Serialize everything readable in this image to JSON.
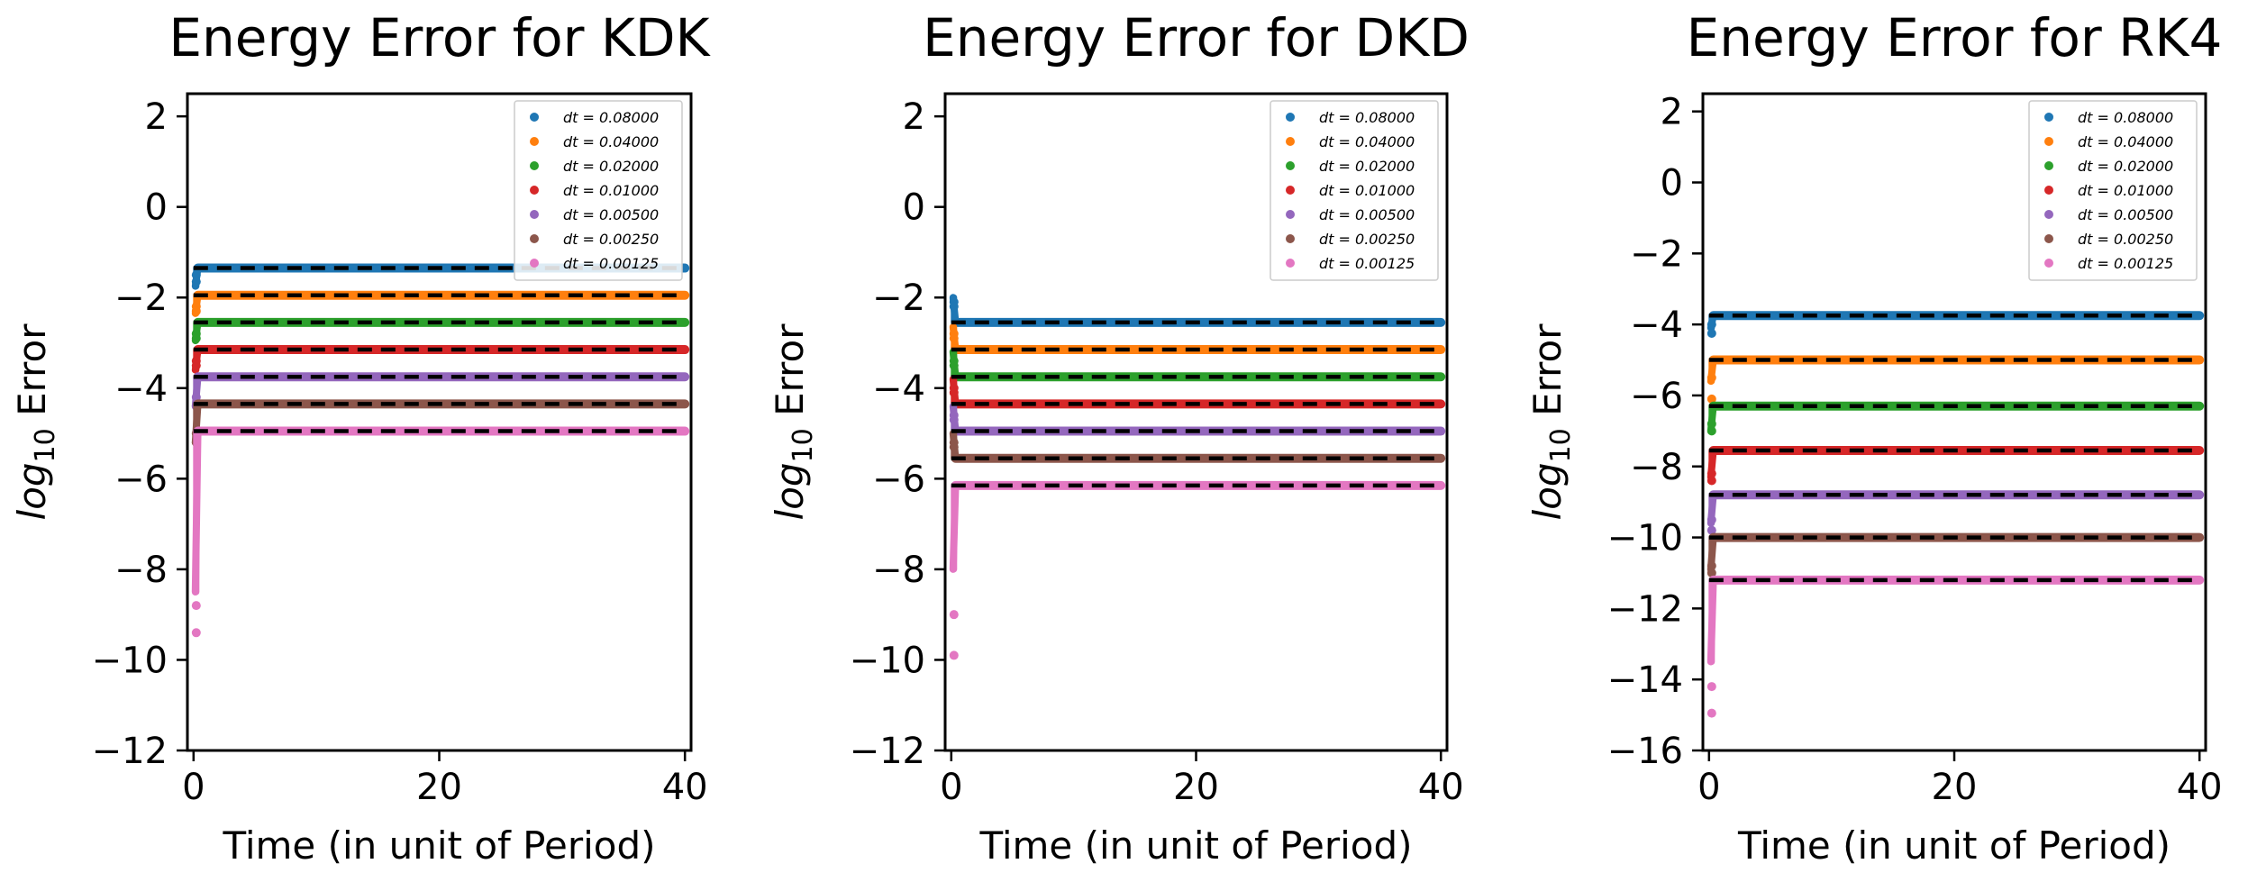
{
  "chart_data": [
    {
      "type": "scatter",
      "title": "Energy Error for KDK",
      "xlabel": "Time (in unit of Period)",
      "ylabel_base": "log",
      "ylabel_sub": "10",
      "ylabel_rest": " Error",
      "xlim": [
        -0.5,
        40.5
      ],
      "ylim": [
        -12,
        2.5
      ],
      "xticks": [
        0,
        20,
        40
      ],
      "yticks": [
        -12,
        -10,
        -8,
        -6,
        -4,
        -2,
        0,
        2
      ],
      "grid": false,
      "legend_position": "top-right",
      "reference_lines": "black dashed",
      "series": [
        {
          "name": "dt = 0.08000",
          "color": "#1f77b4",
          "plateau": -1.35,
          "start": -1.75,
          "spike": [
            -1.5,
            -1.65
          ]
        },
        {
          "name": "dt = 0.04000",
          "color": "#ff7f0e",
          "plateau": -1.95,
          "start": -2.35,
          "spike": [
            -2.2,
            -2.3
          ]
        },
        {
          "name": "dt = 0.02000",
          "color": "#2ca02c",
          "plateau": -2.55,
          "start": -2.95,
          "spike": [
            -2.8,
            -2.9
          ]
        },
        {
          "name": "dt = 0.01000",
          "color": "#d62728",
          "plateau": -3.15,
          "start": -3.6,
          "spike": [
            -3.4,
            -3.5
          ]
        },
        {
          "name": "dt = 0.00500",
          "color": "#9467bd",
          "plateau": -3.75,
          "start": -4.4,
          "spike": [
            -4.2,
            -4.4
          ]
        },
        {
          "name": "dt = 0.00250",
          "color": "#8c564b",
          "plateau": -4.35,
          "start": -5.2,
          "spike": [
            -5.0,
            -5.2
          ]
        },
        {
          "name": "dt = 0.00125",
          "color": "#e377c2",
          "plateau": -4.95,
          "start": -8.5,
          "spike": [
            -8.8,
            -9.4
          ]
        }
      ]
    },
    {
      "type": "scatter",
      "title": "Energy Error for DKD",
      "xlabel": "Time (in unit of Period)",
      "ylabel_base": "log",
      "ylabel_sub": "10",
      "ylabel_rest": " Error",
      "xlim": [
        -0.5,
        40.5
      ],
      "ylim": [
        -12,
        2.5
      ],
      "xticks": [
        0,
        20,
        40
      ],
      "yticks": [
        -12,
        -10,
        -8,
        -6,
        -4,
        -2,
        0,
        2
      ],
      "grid": false,
      "legend_position": "top-right",
      "reference_lines": "black dashed",
      "series": [
        {
          "name": "dt = 0.08000",
          "color": "#1f77b4",
          "plateau": -2.55,
          "start": -2.0,
          "spike": [
            -2.1,
            -2.2
          ]
        },
        {
          "name": "dt = 0.04000",
          "color": "#ff7f0e",
          "plateau": -3.15,
          "start": -2.65,
          "spike": [
            -2.8,
            -2.9
          ]
        },
        {
          "name": "dt = 0.02000",
          "color": "#2ca02c",
          "plateau": -3.75,
          "start": -3.2,
          "spike": [
            -3.4,
            -3.5
          ]
        },
        {
          "name": "dt = 0.01000",
          "color": "#d62728",
          "plateau": -4.35,
          "start": -3.8,
          "spike": [
            -4.0,
            -4.1
          ]
        },
        {
          "name": "dt = 0.00500",
          "color": "#9467bd",
          "plateau": -4.95,
          "start": -4.4,
          "spike": [
            -4.6,
            -4.7
          ]
        },
        {
          "name": "dt = 0.00250",
          "color": "#8c564b",
          "plateau": -5.55,
          "start": -5.0,
          "spike": [
            -5.2,
            -5.3
          ]
        },
        {
          "name": "dt = 0.00125",
          "color": "#e377c2",
          "plateau": -6.15,
          "start": -8.0,
          "spike": [
            -9.0,
            -9.9
          ]
        }
      ]
    },
    {
      "type": "scatter",
      "title": "Energy Error for RK4",
      "xlabel": "Time (in unit of Period)",
      "ylabel_base": "log",
      "ylabel_sub": "10",
      "ylabel_rest": " Error",
      "xlim": [
        -0.5,
        40.5
      ],
      "ylim": [
        -16,
        2.5
      ],
      "xticks": [
        0,
        20,
        40
      ],
      "yticks": [
        -16,
        -14,
        -12,
        -10,
        -8,
        -6,
        -4,
        -2,
        0,
        2
      ],
      "grid": false,
      "legend_position": "top-right",
      "reference_lines": "black dashed",
      "series": [
        {
          "name": "dt = 0.08000",
          "color": "#1f77b4",
          "plateau": -3.75,
          "start": -4.1,
          "spike": [
            -4.0,
            -4.25
          ]
        },
        {
          "name": "dt = 0.04000",
          "color": "#ff7f0e",
          "plateau": -5.0,
          "start": -5.6,
          "spike": [
            -5.5,
            -6.1
          ]
        },
        {
          "name": "dt = 0.02000",
          "color": "#2ca02c",
          "plateau": -6.3,
          "start": -7.0,
          "spike": [
            -6.8,
            -7.0
          ]
        },
        {
          "name": "dt = 0.01000",
          "color": "#d62728",
          "plateau": -7.55,
          "start": -8.3,
          "spike": [
            -8.2,
            -8.4
          ]
        },
        {
          "name": "dt = 0.00500",
          "color": "#9467bd",
          "plateau": -8.8,
          "start": -9.6,
          "spike": [
            -9.5,
            -9.8
          ]
        },
        {
          "name": "dt = 0.00250",
          "color": "#8c564b",
          "plateau": -10.0,
          "start": -10.9,
          "spike": [
            -10.8,
            -11.0
          ]
        },
        {
          "name": "dt = 0.00125",
          "color": "#e377c2",
          "plateau": -11.2,
          "start": -13.5,
          "spike": [
            -14.2,
            -14.95
          ]
        }
      ]
    }
  ]
}
